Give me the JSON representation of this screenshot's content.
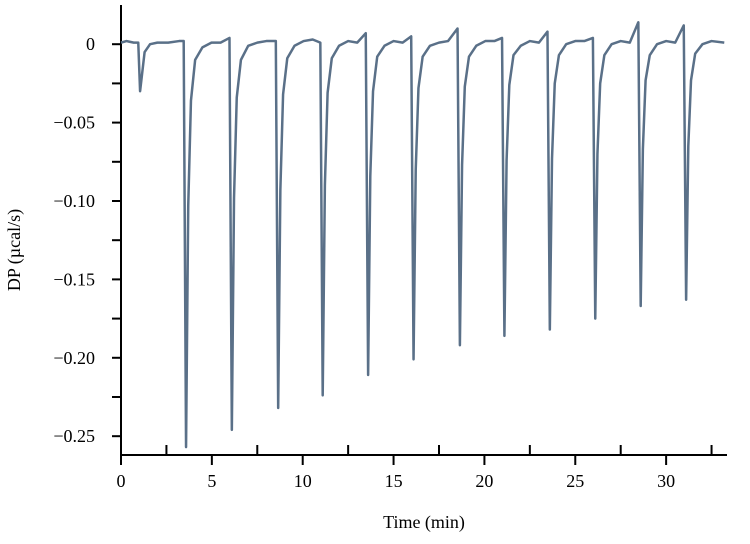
{
  "chart_data": {
    "type": "line",
    "x_label": "Time  (min)",
    "y_label": "DP  (µcal/s)",
    "xlim": [
      0,
      33.35
    ],
    "ylim": [
      -0.262,
      0.025
    ],
    "xticks": [
      0,
      5,
      10,
      15,
      20,
      25,
      30
    ],
    "xminor_ticks": [
      2.5,
      7.5,
      12.5,
      17.5,
      22.5,
      27.5,
      32.5
    ],
    "yticks": [
      0,
      {
        "value": -0.05,
        "label": "−0.05"
      },
      {
        "value": -0.1,
        "label": "−0.10"
      },
      {
        "value": -0.15,
        "label": "−0.15"
      },
      {
        "value": -0.2,
        "label": "−0.20"
      },
      {
        "value": -0.25,
        "label": "−0.25"
      }
    ],
    "yminor_ticks": [
      -0.025,
      -0.075,
      -0.125,
      -0.175,
      -0.225
    ],
    "series": [
      {
        "color": "#5a7088",
        "x": [
          0,
          0.3,
          0.7,
          0.95,
          1.05,
          1.15,
          1.3,
          1.6,
          2.0,
          2.6,
          3.2,
          3.45,
          3.58,
          3.7,
          3.85,
          4.08,
          4.48,
          4.98,
          5.48,
          5.97,
          6.1,
          6.22,
          6.37,
          6.6,
          7.0,
          7.5,
          8.0,
          8.52,
          8.65,
          8.77,
          8.92,
          9.15,
          9.55,
          10.05,
          10.55,
          10.97,
          11.1,
          11.22,
          11.37,
          11.6,
          12.0,
          12.5,
          13.0,
          13.47,
          13.6,
          13.72,
          13.87,
          14.1,
          14.5,
          15.0,
          15.5,
          15.97,
          16.1,
          16.22,
          16.37,
          16.6,
          17.0,
          17.5,
          18.0,
          18.52,
          18.65,
          18.77,
          18.92,
          19.15,
          19.55,
          20.05,
          20.55,
          20.97,
          21.1,
          21.22,
          21.37,
          21.6,
          22.0,
          22.5,
          23.0,
          23.47,
          23.6,
          23.72,
          23.87,
          24.1,
          24.5,
          25.0,
          25.5,
          25.97,
          26.1,
          26.22,
          26.37,
          26.6,
          27.0,
          27.5,
          28.0,
          28.47,
          28.6,
          28.72,
          28.87,
          29.1,
          29.5,
          30.0,
          30.5,
          30.97,
          31.1,
          31.22,
          31.37,
          31.6,
          32.0,
          32.5,
          33.2
        ],
        "values": [
          0.001,
          0.002,
          0.001,
          0.001,
          -0.03,
          -0.02,
          -0.005,
          0.0,
          0.001,
          0.001,
          0.002,
          0.002,
          -0.257,
          -0.103,
          -0.036,
          -0.01,
          -0.002,
          0.001,
          0.001,
          0.004,
          -0.246,
          -0.098,
          -0.034,
          -0.01,
          -0.001,
          0.001,
          0.002,
          0.002,
          -0.232,
          -0.093,
          -0.032,
          -0.009,
          -0.001,
          0.002,
          0.003,
          0.001,
          -0.224,
          -0.09,
          -0.031,
          -0.009,
          -0.001,
          0.002,
          0.001,
          0.007,
          -0.211,
          -0.084,
          -0.03,
          -0.008,
          -0.001,
          0.002,
          0.001,
          0.005,
          -0.201,
          -0.08,
          -0.028,
          -0.008,
          -0.001,
          0.001,
          0.002,
          0.01,
          -0.192,
          -0.077,
          -0.027,
          -0.008,
          -0.001,
          0.002,
          0.002,
          0.004,
          -0.186,
          -0.074,
          -0.026,
          -0.007,
          -0.001,
          0.002,
          0.001,
          0.008,
          -0.182,
          -0.073,
          -0.025,
          -0.007,
          0,
          0.002,
          0.002,
          0.004,
          -0.175,
          -0.07,
          -0.025,
          -0.007,
          0,
          0.002,
          0.001,
          0.014,
          -0.167,
          -0.067,
          -0.023,
          -0.007,
          0,
          0.002,
          0.001,
          0.012,
          -0.163,
          -0.065,
          -0.023,
          -0.006,
          0,
          0.002,
          0.001
        ]
      }
    ]
  }
}
